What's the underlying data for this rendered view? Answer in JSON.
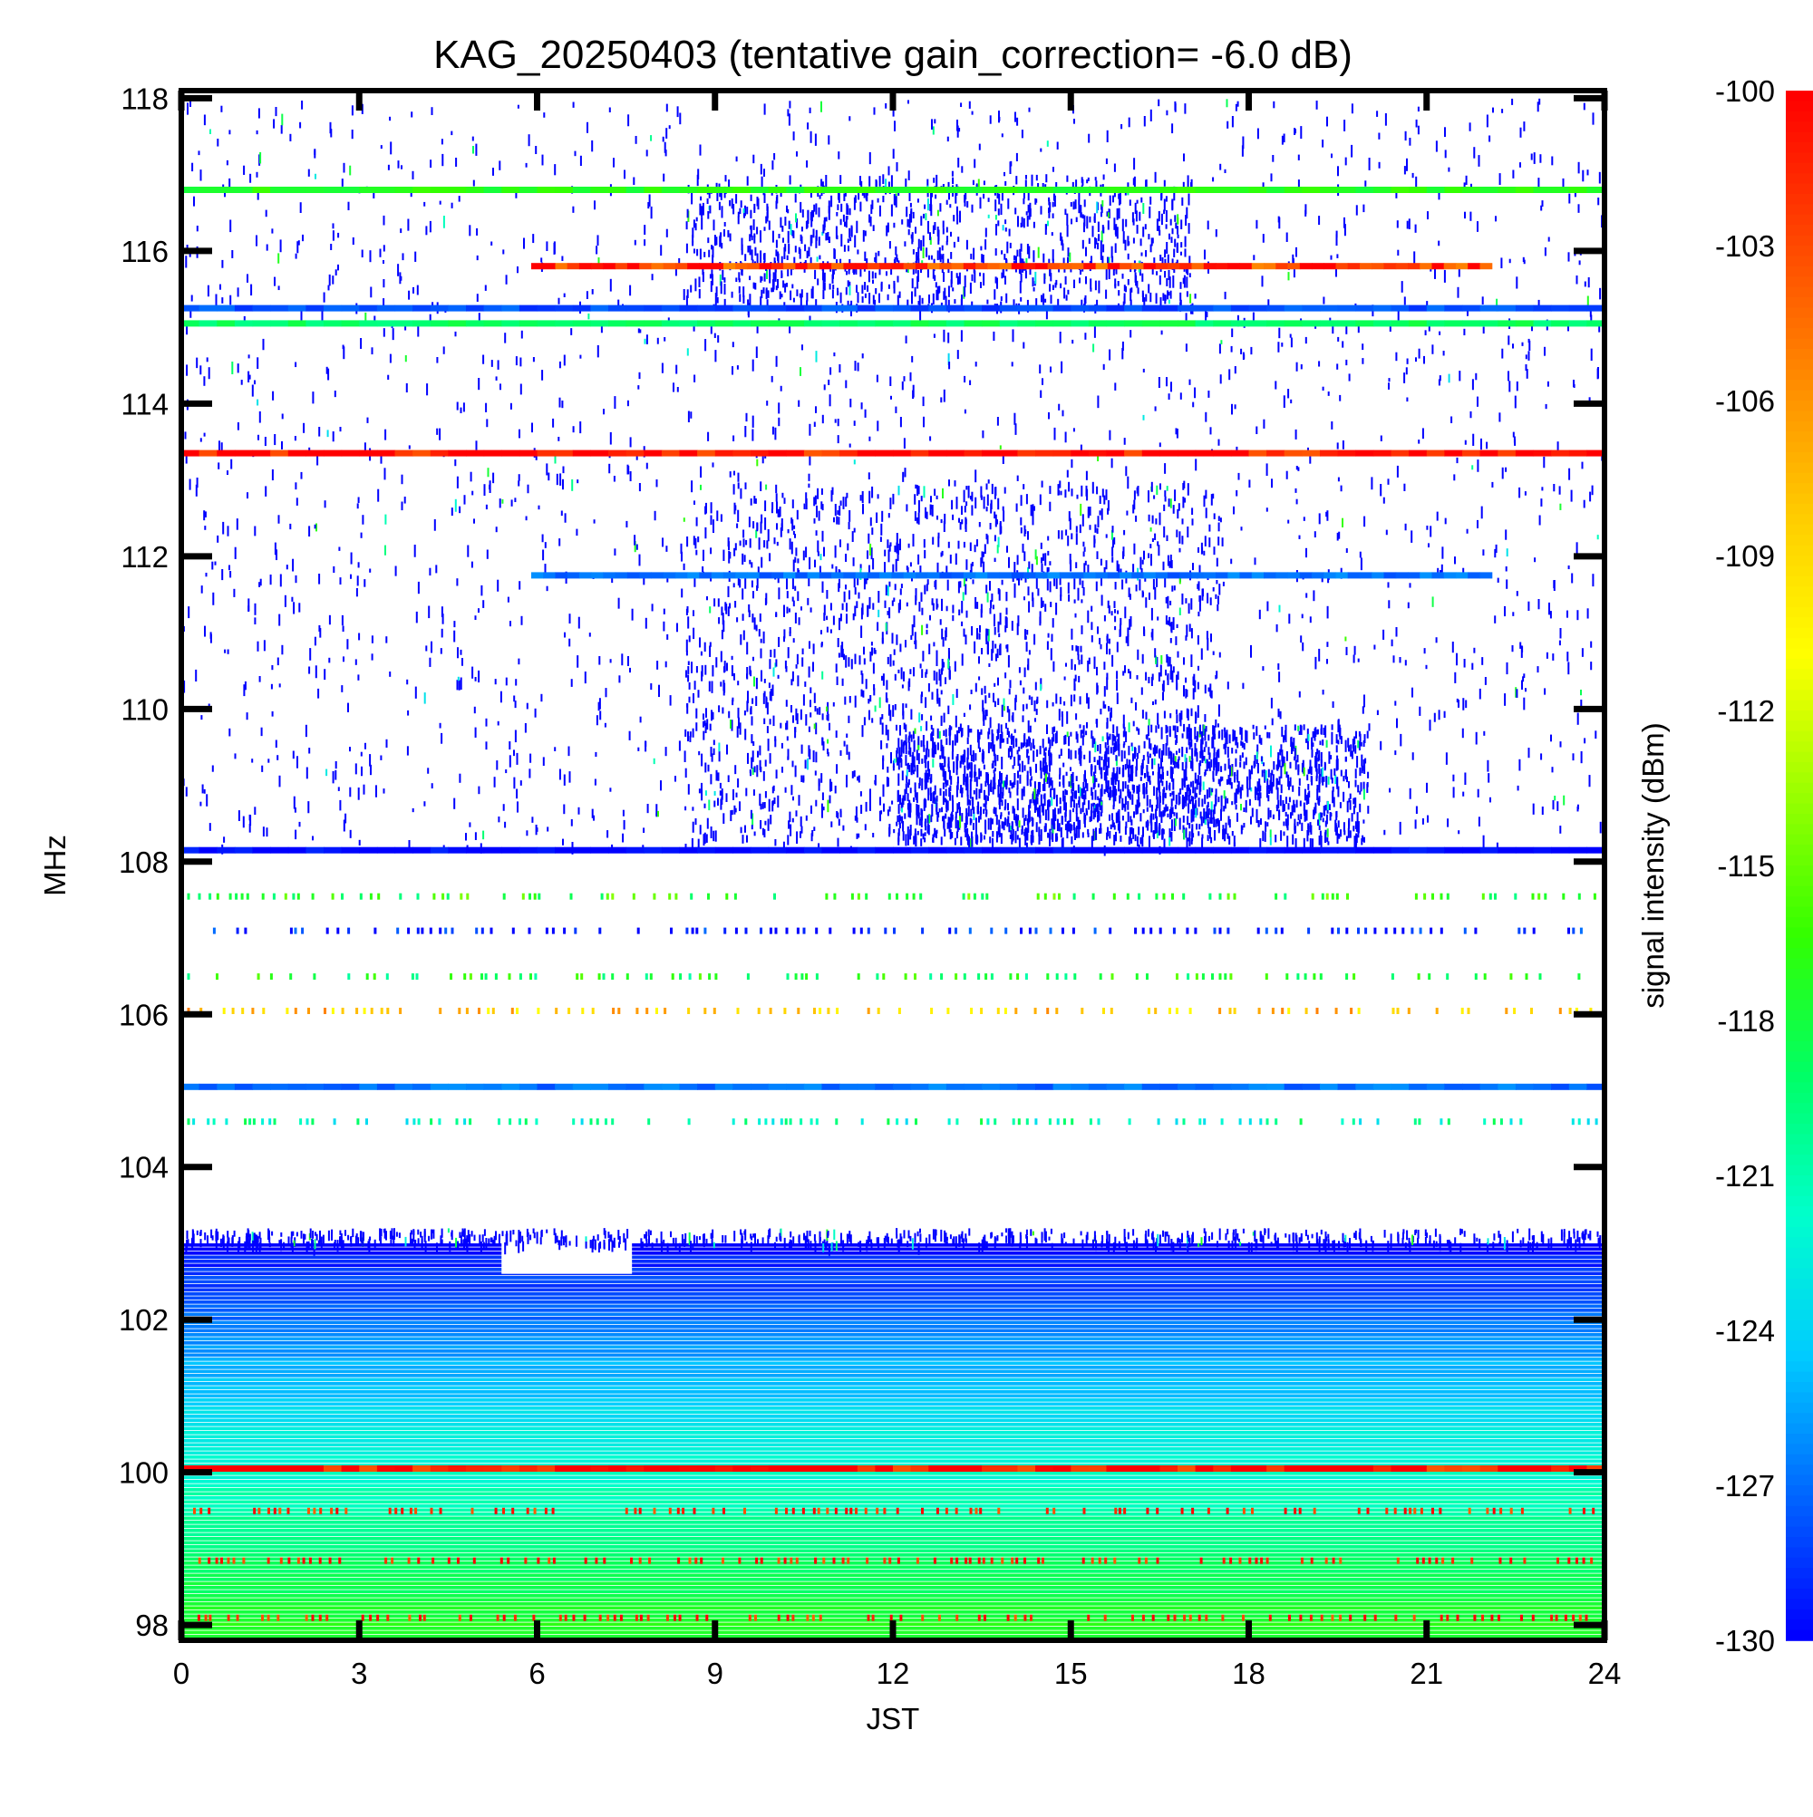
{
  "chart_data": {
    "type": "heatmap",
    "title": "KAG_20250403 (tentative gain_correction= -6.0 dB)",
    "xlabel": "JST",
    "ylabel": "MHz",
    "colorbar_label": "signal intensity (dBm)",
    "xlim": [
      0,
      24
    ],
    "ylim": [
      97.8,
      118.1
    ],
    "x_ticks": [
      0,
      3,
      6,
      9,
      12,
      15,
      18,
      21,
      24
    ],
    "x_tick_labels": [
      "0",
      "3",
      "6",
      "9",
      "12",
      "15",
      "18",
      "21",
      "24"
    ],
    "y_ticks": [
      98,
      100,
      102,
      104,
      106,
      108,
      110,
      112,
      114,
      116,
      118
    ],
    "y_tick_labels": [
      "98",
      "100",
      "102",
      "104",
      "106",
      "108",
      "110",
      "112",
      "114",
      "116",
      "118"
    ],
    "colorbar_range": [
      -130,
      -100
    ],
    "colorbar_ticks": [
      -100,
      -103,
      -106,
      -109,
      -112,
      -115,
      -118,
      -121,
      -124,
      -127,
      -130
    ],
    "colorbar_tick_labels": [
      "-100",
      "-103",
      "-106",
      "-109",
      "-112",
      "-115",
      "-118",
      "-121",
      "-124",
      "-127",
      "-130"
    ],
    "colormap": [
      "#0000ff",
      "#0066ff",
      "#00ccff",
      "#00ffcc",
      "#00ff66",
      "#33ff00",
      "#99ff00",
      "#ffff00",
      "#ffcc00",
      "#ff8800",
      "#ff4400",
      "#ff0000"
    ],
    "grid": false,
    "continuous_lines": [
      {
        "freq_mhz": 116.8,
        "x_start": 0,
        "x_end": 24,
        "level_dbm": -117
      },
      {
        "freq_mhz": 115.8,
        "x_start": 5.9,
        "x_end": 22.1,
        "level_dbm": -102
      },
      {
        "freq_mhz": 115.25,
        "x_start": 0,
        "x_end": 24,
        "level_dbm": -128
      },
      {
        "freq_mhz": 115.05,
        "x_start": 0,
        "x_end": 24,
        "level_dbm": -119
      },
      {
        "freq_mhz": 113.35,
        "x_start": 0,
        "x_end": 24,
        "level_dbm": -100
      },
      {
        "freq_mhz": 111.75,
        "x_start": 5.9,
        "x_end": 22.1,
        "level_dbm": -127
      },
      {
        "freq_mhz": 108.15,
        "x_start": 0,
        "x_end": 24,
        "level_dbm": -130
      },
      {
        "freq_mhz": 105.05,
        "x_start": 0,
        "x_end": 24,
        "level_dbm": -127
      },
      {
        "freq_mhz": 100.05,
        "x_start": 0,
        "x_end": 24,
        "level_dbm": -100
      }
    ],
    "dotted_lines": [
      {
        "freq_mhz": 107.55,
        "level_dbm": -117
      },
      {
        "freq_mhz": 107.1,
        "level_dbm": -130
      },
      {
        "freq_mhz": 106.5,
        "level_dbm": -118
      },
      {
        "freq_mhz": 106.05,
        "level_dbm": -108
      },
      {
        "freq_mhz": 104.6,
        "level_dbm": -121
      },
      {
        "freq_mhz": 99.5,
        "level_dbm": -101
      },
      {
        "freq_mhz": 98.85,
        "level_dbm": -101
      },
      {
        "freq_mhz": 98.1,
        "level_dbm": -101
      }
    ],
    "noise_floor_region": {
      "freq_low": 97.8,
      "freq_high": 103.0,
      "level_low_dbm": -117,
      "level_high_dbm": -130
    }
  }
}
